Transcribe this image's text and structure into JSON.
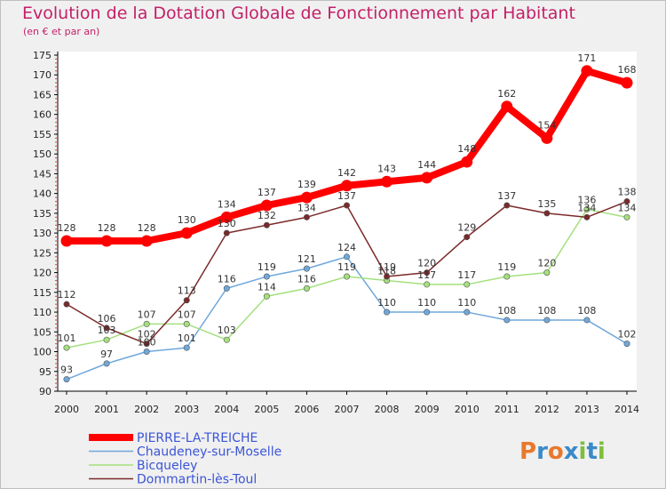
{
  "chart_data": {
    "type": "line",
    "title": "Evolution de la Dotation Globale de Fonctionnement par Habitant",
    "subtitle": "(en € et par an)",
    "xlabel": "",
    "ylabel": "",
    "ylim": [
      90,
      175
    ],
    "ytick_step": 5,
    "grid": false,
    "legend_position": "bottom-left",
    "x": [
      "2000",
      "2001",
      "2002",
      "2003",
      "2004",
      "2005",
      "2006",
      "2007",
      "2008",
      "2009",
      "2010",
      "2011",
      "2012",
      "2013",
      "2014"
    ],
    "series": [
      {
        "name": "PIERRE-LA-TREICHE",
        "color": "#ff0000",
        "width": 8,
        "values": [
          128,
          128,
          128,
          130,
          134,
          137,
          139,
          142,
          143,
          144,
          148,
          162,
          154,
          171,
          168
        ],
        "labels": [
          "128",
          "128",
          "128",
          "130",
          "134",
          "137",
          "139",
          "142",
          "143",
          "144",
          "148",
          "162",
          "154",
          "171",
          "168"
        ]
      },
      {
        "name": "Chaudeney-sur-Moselle",
        "color": "#6fa8dc",
        "width": 1.5,
        "values": [
          93,
          97,
          100,
          101,
          116,
          119,
          121,
          124,
          110,
          110,
          110,
          108,
          108,
          108,
          102
        ],
        "labels": [
          "93",
          "97",
          "100",
          "101",
          "116",
          "119",
          "121",
          "124",
          "110",
          "110",
          "110",
          "108",
          "108",
          "108",
          "102"
        ]
      },
      {
        "name": "Bicqueley",
        "color": "#a4e07e",
        "width": 1.5,
        "values": [
          101,
          103,
          107,
          107,
          103,
          114,
          116,
          119,
          118,
          117,
          117,
          119,
          120,
          136,
          134
        ],
        "labels": [
          "101",
          "103",
          "107",
          "107",
          "103",
          "114",
          "116",
          "119",
          "118",
          "117",
          "117",
          "119",
          "120",
          "136",
          "134"
        ]
      },
      {
        "name": "Dommartin-lès-Toul",
        "color": "#7a2a2a",
        "width": 1.5,
        "values": [
          112,
          106,
          102,
          113,
          130,
          132,
          134,
          137,
          119,
          120,
          129,
          137,
          135,
          134,
          138
        ],
        "labels": [
          "112",
          "106",
          "102",
          "113",
          "130",
          "132",
          "134",
          "137",
          "119",
          "120",
          "129",
          "137",
          "135",
          "134",
          "138"
        ]
      }
    ]
  },
  "logo": {
    "text": "Proxiti"
  }
}
